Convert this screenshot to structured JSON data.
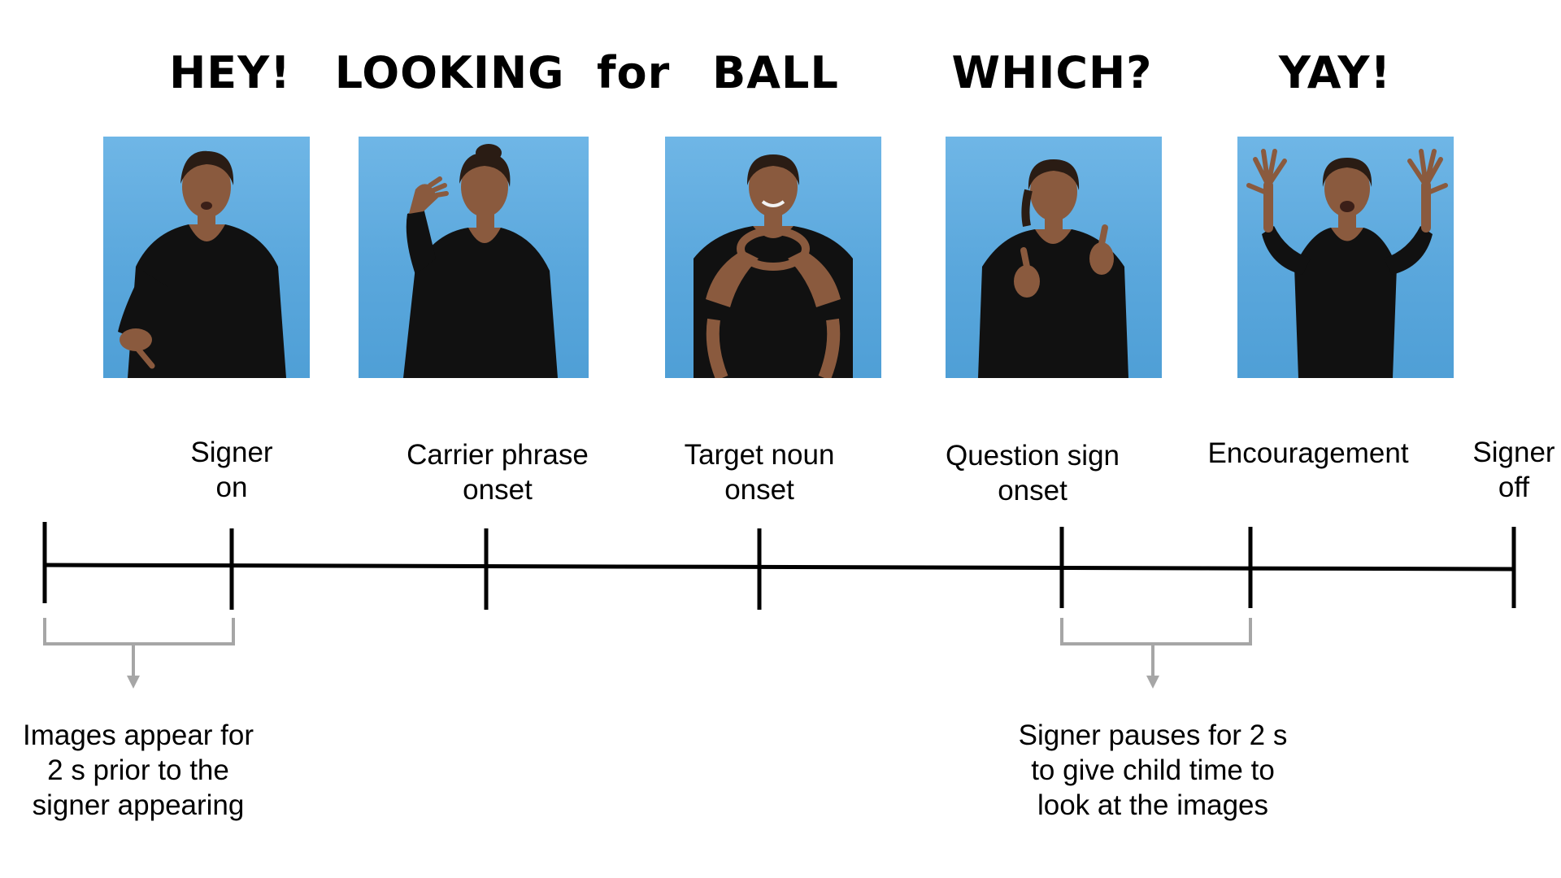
{
  "glosses": [
    "HEY!",
    "LOOKING  for",
    "BALL",
    "WHICH?",
    "YAY!"
  ],
  "events": [
    {
      "line1": "Signer",
      "line2": "on"
    },
    {
      "line1": "Carrier phrase",
      "line2": "onset"
    },
    {
      "line1": "Target noun",
      "line2": "onset"
    },
    {
      "line1": "Question sign",
      "line2": "onset"
    },
    {
      "line1": "Encouragement",
      "line2": ""
    },
    {
      "line1": "Signer",
      "line2": "off"
    }
  ],
  "notes": {
    "images_appear": {
      "line1": "Images appear for",
      "line2": "2 s prior to the",
      "line3": "signer appearing"
    },
    "signer_pauses": {
      "line1": "Signer pauses for 2 s",
      "line2": "to give child time to",
      "line3": "look at the images"
    }
  },
  "colors": {
    "photo_background": "#5aa7dc",
    "timeline": "#000000",
    "bracket": "#a6a6a6",
    "shirt": "#111111",
    "skin": "#8a5a3e",
    "hair": "#2a1c14"
  }
}
